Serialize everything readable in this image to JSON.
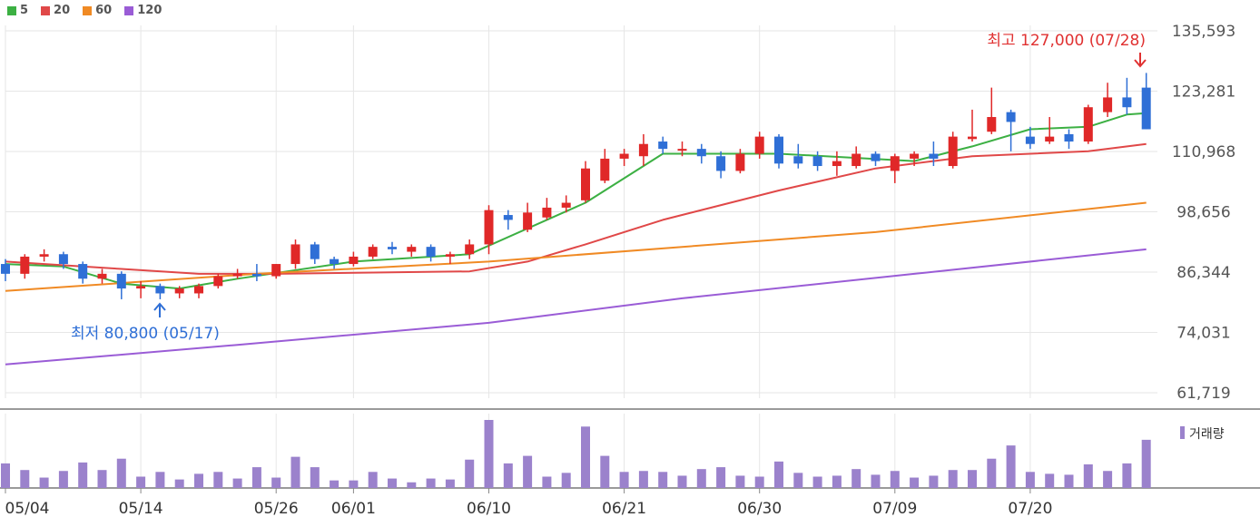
{
  "legend": [
    {
      "label": "5",
      "color": "#3cb043"
    },
    {
      "label": "20",
      "color": "#e04848"
    },
    {
      "label": "60",
      "color": "#f08a24"
    },
    {
      "label": "120",
      "color": "#9a5cd6"
    }
  ],
  "colors": {
    "up": "#e02828",
    "down": "#2f6fd6",
    "volume": "#9b82cc"
  },
  "annotations": {
    "high": "최고 127,000 (07/28)",
    "low": "최저 80,800 (05/17)"
  },
  "volume_label": "거래량",
  "chart_data": {
    "type": "candlestick",
    "y_ticks": [
      "135,593",
      "123,281",
      "110,968",
      "98,656",
      "86,344",
      "74,031",
      "61,719"
    ],
    "y_tick_values": [
      135593,
      123281,
      110968,
      98656,
      86344,
      74031,
      61719
    ],
    "x_ticks": [
      "05/04",
      "05/14",
      "05/26",
      "06/01",
      "06/10",
      "06/21",
      "06/30",
      "07/09",
      "07/20"
    ],
    "x_tick_index": [
      0,
      7,
      14,
      18,
      25,
      32,
      39,
      46,
      53
    ],
    "candles": [
      [
        88000,
        89000,
        84500,
        86000
      ],
      [
        86000,
        90000,
        85000,
        89500
      ],
      [
        89500,
        91000,
        88500,
        90000
      ],
      [
        90000,
        90500,
        87000,
        88000
      ],
      [
        88000,
        88500,
        84000,
        85000
      ],
      [
        85000,
        87000,
        84000,
        86000
      ],
      [
        86000,
        86500,
        80800,
        83000
      ],
      [
        83000,
        84500,
        81000,
        83500
      ],
      [
        83500,
        84000,
        80800,
        82000
      ],
      [
        82000,
        83500,
        81000,
        83000
      ],
      [
        82000,
        84000,
        81000,
        83500
      ],
      [
        83500,
        86000,
        83000,
        85500
      ],
      [
        85500,
        87000,
        85000,
        86000
      ],
      [
        86000,
        88000,
        84500,
        85500
      ],
      [
        85500,
        88000,
        85000,
        88000
      ],
      [
        88000,
        93000,
        87000,
        92000
      ],
      [
        92000,
        92500,
        88000,
        89000
      ],
      [
        89000,
        89500,
        87000,
        88000
      ],
      [
        88000,
        90500,
        87500,
        89500
      ],
      [
        89500,
        92000,
        89000,
        91500
      ],
      [
        91500,
        92500,
        90000,
        91000
      ],
      [
        90500,
        92000,
        89500,
        91500
      ],
      [
        91500,
        92000,
        88500,
        89500
      ],
      [
        89500,
        90500,
        88000,
        90000
      ],
      [
        90000,
        93000,
        89000,
        92000
      ],
      [
        92000,
        100000,
        90000,
        99000
      ],
      [
        98000,
        99000,
        95000,
        97000
      ],
      [
        95000,
        100500,
        94500,
        98500
      ],
      [
        97500,
        101500,
        97000,
        99500
      ],
      [
        99500,
        102000,
        98500,
        100500
      ],
      [
        101000,
        109000,
        100500,
        107500
      ],
      [
        105000,
        111500,
        104500,
        109500
      ],
      [
        109500,
        111500,
        108000,
        110500
      ],
      [
        110000,
        114500,
        108000,
        112500
      ],
      [
        113000,
        114000,
        110500,
        111500
      ],
      [
        111500,
        113000,
        110000,
        111500
      ],
      [
        111500,
        112500,
        108500,
        110000
      ],
      [
        110000,
        111000,
        105500,
        107000
      ],
      [
        107000,
        111500,
        106500,
        110500
      ],
      [
        110500,
        115000,
        109500,
        114000
      ],
      [
        114000,
        114500,
        107500,
        108500
      ],
      [
        110000,
        112500,
        107500,
        108500
      ],
      [
        110000,
        111000,
        107000,
        108000
      ],
      [
        108000,
        111000,
        106000,
        109000
      ],
      [
        108000,
        112000,
        107500,
        110500
      ],
      [
        110500,
        111000,
        108000,
        109000
      ],
      [
        107000,
        110500,
        104500,
        110000
      ],
      [
        109500,
        111000,
        108000,
        110500
      ],
      [
        110500,
        113000,
        108000,
        109500
      ],
      [
        108000,
        115000,
        107500,
        114000
      ],
      [
        113500,
        119500,
        113000,
        114000
      ],
      [
        115000,
        124000,
        114500,
        118000
      ],
      [
        119000,
        119500,
        111000,
        117000
      ],
      [
        114000,
        116000,
        111500,
        112500
      ],
      [
        113000,
        118000,
        112500,
        114000
      ],
      [
        114500,
        115500,
        111500,
        113000
      ],
      [
        113000,
        120500,
        112500,
        120000
      ],
      [
        119000,
        125000,
        118000,
        122000
      ],
      [
        122000,
        126000,
        118500,
        120000
      ],
      [
        124000,
        127000,
        115500,
        115500
      ]
    ],
    "volume": [
      26,
      19,
      11,
      18,
      27,
      19,
      31,
      12,
      17,
      9,
      15,
      17,
      10,
      22,
      11,
      33,
      22,
      8,
      8,
      17,
      10,
      6,
      10,
      9,
      30,
      72,
      26,
      34,
      12,
      16,
      65,
      34,
      17,
      18,
      17,
      13,
      20,
      22,
      13,
      12,
      28,
      16,
      12,
      13,
      20,
      14,
      18,
      11,
      13,
      19,
      19,
      31,
      45,
      17,
      15,
      14,
      25,
      18,
      26,
      51
    ],
    "ma_series": [
      {
        "name": "5",
        "color": "#3cb043",
        "points": [
          [
            0,
            88000
          ],
          [
            3,
            87500
          ],
          [
            6,
            84000
          ],
          [
            9,
            83000
          ],
          [
            12,
            85000
          ],
          [
            18,
            88500
          ],
          [
            24,
            90000
          ],
          [
            30,
            100500
          ],
          [
            34,
            110500
          ],
          [
            40,
            110500
          ],
          [
            47,
            109000
          ],
          [
            50,
            112000
          ],
          [
            53,
            115500
          ],
          [
            56,
            116000
          ],
          [
            58,
            118500
          ],
          [
            59,
            118800
          ]
        ]
      },
      {
        "name": "20",
        "color": "#e04848",
        "points": [
          [
            0,
            88500
          ],
          [
            6,
            87000
          ],
          [
            10,
            86000
          ],
          [
            14,
            86000
          ],
          [
            24,
            86500
          ],
          [
            27,
            88500
          ],
          [
            30,
            92000
          ],
          [
            34,
            97000
          ],
          [
            40,
            103000
          ],
          [
            45,
            107500
          ],
          [
            50,
            110000
          ],
          [
            56,
            111000
          ],
          [
            59,
            112500
          ]
        ]
      },
      {
        "name": "60",
        "color": "#f08a24",
        "points": [
          [
            0,
            82500
          ],
          [
            13,
            86000
          ],
          [
            25,
            88500
          ],
          [
            35,
            91500
          ],
          [
            45,
            94500
          ],
          [
            59,
            100500
          ]
        ]
      },
      {
        "name": "120",
        "color": "#9a5cd6",
        "points": [
          [
            0,
            67500
          ],
          [
            12,
            71500
          ],
          [
            25,
            76000
          ],
          [
            35,
            81000
          ],
          [
            47,
            86000
          ],
          [
            59,
            91000
          ]
        ]
      }
    ]
  }
}
